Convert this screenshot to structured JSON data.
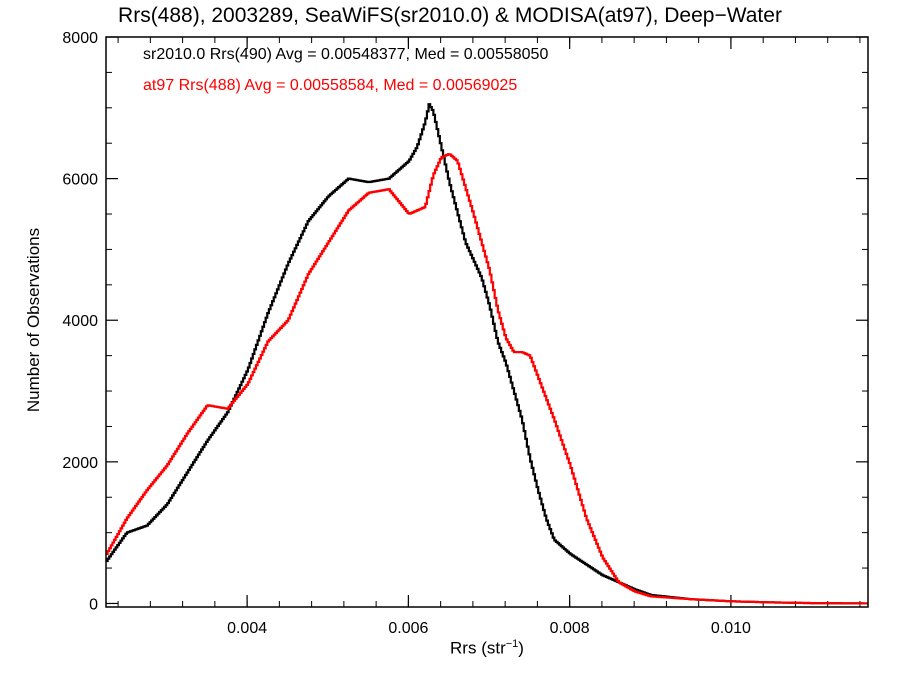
{
  "chart_data": {
    "type": "line",
    "title": "Rrs(488), 2003289, SeaWiFS(sr2010.0) & MODISA(at97), Deep−Water",
    "xlabel_main": "Rrs (str",
    "xlabel_sup": "−1",
    "xlabel_end": ")",
    "ylabel": "Number of Observations",
    "xlim": [
      0.00225,
      0.0117
    ],
    "ylim": [
      -50,
      8000
    ],
    "xticks": [
      0.004,
      0.006,
      0.008,
      0.01
    ],
    "xtick_labels": [
      "0.004",
      "0.006",
      "0.008",
      "0.010"
    ],
    "yticks": [
      0,
      2000,
      4000,
      6000,
      8000
    ],
    "ytick_labels": [
      "0",
      "2000",
      "4000",
      "6000",
      "8000"
    ],
    "annotations": [
      {
        "text": "sr2010.0 Rrs(490) Avg = 0.00548377, Med = 0.00558050",
        "color": "#000000"
      },
      {
        "text": "at97 Rrs(488) Avg = 0.00558584, Med = 0.00569025",
        "color": "#ff0000"
      }
    ],
    "series": [
      {
        "color": "#000000",
        "x": [
          0.00225,
          0.0025,
          0.00275,
          0.003,
          0.00325,
          0.0035,
          0.00375,
          0.004,
          0.00425,
          0.0045,
          0.00475,
          0.005,
          0.00525,
          0.0055,
          0.00575,
          0.006,
          0.0061,
          0.0062,
          0.00625,
          0.0063,
          0.0065,
          0.0067,
          0.0069,
          0.007,
          0.0071,
          0.0072,
          0.0073,
          0.0074,
          0.0075,
          0.0076,
          0.0077,
          0.0078,
          0.008,
          0.0082,
          0.0084,
          0.0086,
          0.0088,
          0.009,
          0.0095,
          0.01,
          0.0105,
          0.011,
          0.0117
        ],
        "y": [
          600,
          1000,
          1100,
          1400,
          1850,
          2300,
          2700,
          3300,
          4100,
          4800,
          5400,
          5750,
          6000,
          5950,
          6000,
          6250,
          6450,
          6800,
          7050,
          6950,
          5950,
          5100,
          4600,
          4200,
          3700,
          3400,
          3000,
          2600,
          2050,
          1600,
          1200,
          900,
          700,
          550,
          400,
          300,
          200,
          120,
          60,
          30,
          15,
          5,
          0
        ]
      },
      {
        "color": "#ff0000",
        "x": [
          0.00225,
          0.0025,
          0.00275,
          0.003,
          0.00325,
          0.0035,
          0.00375,
          0.004,
          0.00425,
          0.0045,
          0.00475,
          0.005,
          0.00525,
          0.0055,
          0.00575,
          0.006,
          0.0062,
          0.0063,
          0.0064,
          0.0065,
          0.0066,
          0.0068,
          0.007,
          0.0071,
          0.0072,
          0.0073,
          0.0074,
          0.0075,
          0.0076,
          0.0077,
          0.0078,
          0.008,
          0.0082,
          0.0084,
          0.0086,
          0.0088,
          0.009,
          0.0095,
          0.01,
          0.0105,
          0.011,
          0.0117
        ],
        "y": [
          700,
          1200,
          1600,
          1950,
          2400,
          2800,
          2750,
          3100,
          3700,
          4000,
          4650,
          5100,
          5550,
          5800,
          5850,
          5500,
          5600,
          6050,
          6300,
          6350,
          6250,
          5500,
          4700,
          4150,
          3750,
          3550,
          3550,
          3500,
          3200,
          2900,
          2600,
          1950,
          1200,
          650,
          300,
          170,
          100,
          60,
          30,
          15,
          5,
          0
        ]
      }
    ]
  }
}
